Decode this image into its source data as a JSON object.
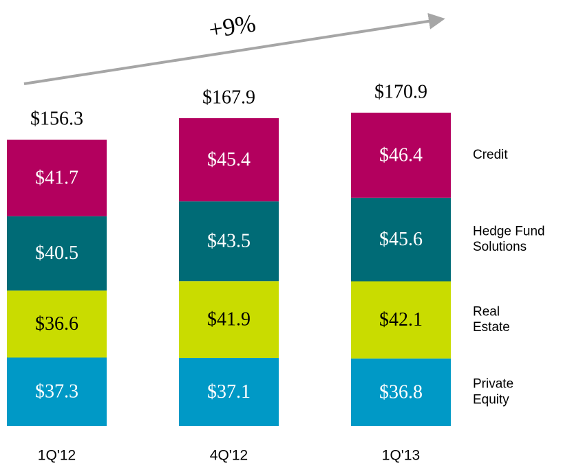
{
  "chart_data": {
    "type": "stacked-bar",
    "annotation": "+9%",
    "categories": [
      "1Q'12",
      "4Q'12",
      "1Q'13"
    ],
    "series": [
      {
        "name": "Private Equity",
        "color": "#0099c6",
        "values": [
          37.3,
          37.1,
          36.8
        ],
        "value_labels": [
          "$37.3",
          "$37.1",
          "$36.8"
        ]
      },
      {
        "name": "Real Estate",
        "color": "#c9dc00",
        "values": [
          36.6,
          41.9,
          42.1
        ],
        "value_labels": [
          "$36.6",
          "$41.9",
          "$42.1"
        ]
      },
      {
        "name": "Hedge Fund Solutions",
        "color": "#006b76",
        "values": [
          40.5,
          43.5,
          45.6
        ],
        "value_labels": [
          "$40.5",
          "$43.5",
          "$45.6"
        ]
      },
      {
        "name": "Credit",
        "color": "#b3005e",
        "values": [
          41.7,
          45.4,
          46.4
        ],
        "value_labels": [
          "$41.7",
          "$45.4",
          "$46.4"
        ]
      }
    ],
    "totals": [
      156.3,
      167.9,
      170.9
    ],
    "total_labels": [
      "$156.3",
      "$167.9",
      "$170.9"
    ]
  }
}
